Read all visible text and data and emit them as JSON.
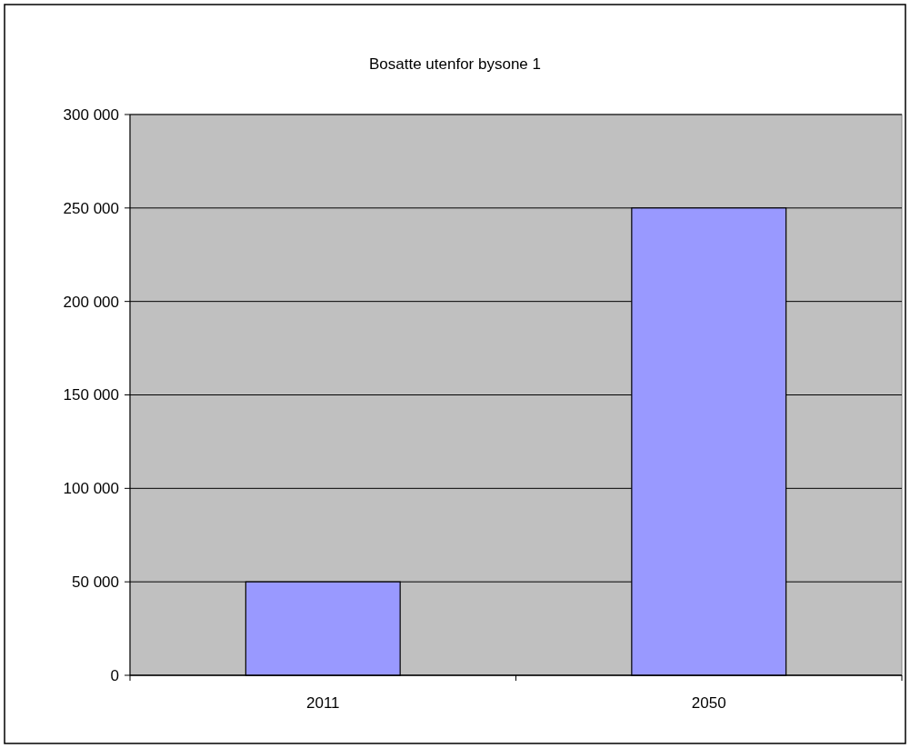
{
  "chart_data": {
    "type": "bar",
    "title": "Bosatte utenfor bysone 1",
    "categories": [
      "2011",
      "2050"
    ],
    "values": [
      50000,
      250000
    ],
    "color": "#9999ff",
    "ylim": [
      0,
      300000
    ],
    "yticks": [
      {
        "value": 0,
        "label": "0"
      },
      {
        "value": 50000,
        "label": "50 000"
      },
      {
        "value": 100000,
        "label": "100 000"
      },
      {
        "value": 150000,
        "label": "150 000"
      },
      {
        "value": 200000,
        "label": "200 000"
      },
      {
        "value": 250000,
        "label": "250 000"
      },
      {
        "value": 300000,
        "label": "300 000"
      }
    ],
    "grid": "y"
  }
}
